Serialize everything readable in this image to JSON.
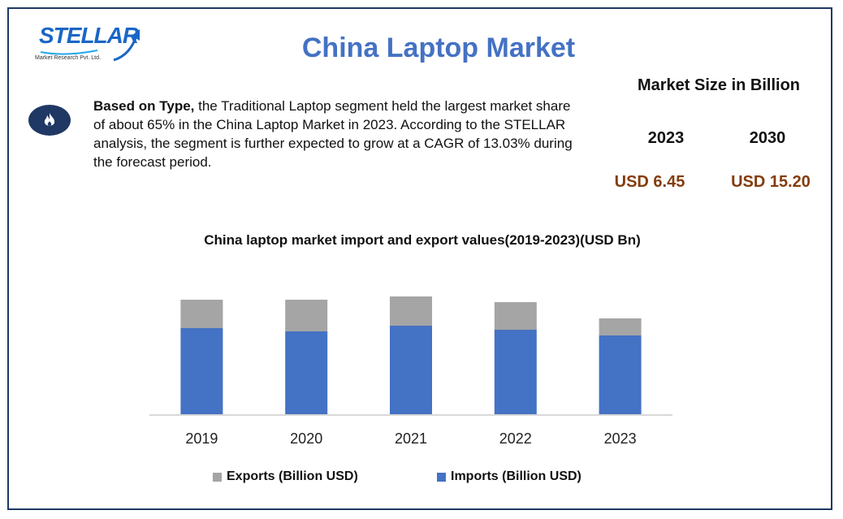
{
  "logo": {
    "word": "STELLAR",
    "sub": "Market Research Pvt. Ltd.",
    "brand_color": "#1a66c7"
  },
  "title": "China Laptop Market",
  "icon": "flame-icon",
  "summary": {
    "bold": "Based on Type,",
    "text": " the Traditional Laptop segment held the largest market share of about 65% in the China Laptop Market in 2023. According to the STELLAR analysis, the segment is further expected to grow at a CAGR of 13.03% during the forecast period."
  },
  "market_size": {
    "title": "Market Size in Billion",
    "years": [
      "2023",
      "2030"
    ],
    "values": [
      "USD 6.45",
      "USD 15.20"
    ]
  },
  "chart_data": {
    "type": "bar",
    "stacked": true,
    "title": "China laptop market import and export values(2019-2023)(USD Bn)",
    "categories": [
      "2019",
      "2020",
      "2021",
      "2022",
      "2023"
    ],
    "series": [
      {
        "name": "Imports (Billion USD)",
        "color": "#4472c4",
        "values": [
          106,
          102,
          109,
          104,
          97
        ]
      },
      {
        "name": "Exports (Billion USD)",
        "color": "#a5a5a5",
        "values": [
          35,
          39,
          36,
          34,
          21
        ]
      }
    ],
    "ylim": [
      0,
      150
    ],
    "y_axis_shown": false,
    "grid": false,
    "legend": "bottom"
  }
}
